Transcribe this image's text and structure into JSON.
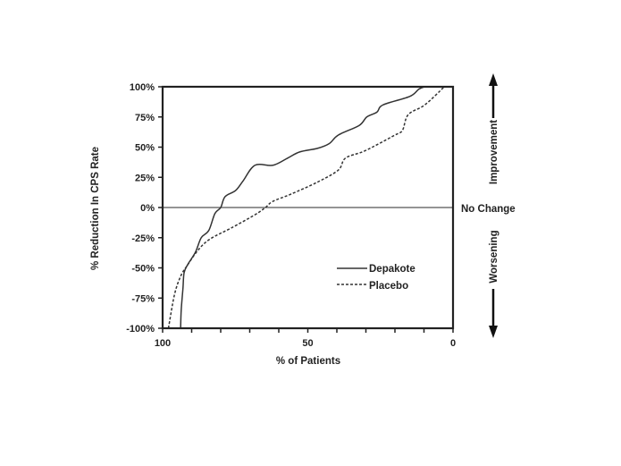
{
  "chart_data": {
    "type": "line",
    "title": "",
    "xlabel": "% of Patients",
    "ylabel": "% Reduction In CPS Rate",
    "xlim": [
      100,
      0
    ],
    "ylim": [
      -100,
      100
    ],
    "x_reversed": true,
    "x_ticks": [
      100,
      90,
      80,
      70,
      60,
      50,
      40,
      30,
      20,
      10,
      0
    ],
    "x_tick_labels": [
      {
        "value": 100,
        "label": "100"
      },
      {
        "value": 50,
        "label": "50"
      },
      {
        "value": 0,
        "label": "0"
      }
    ],
    "y_ticks": [
      {
        "value": 100,
        "label": "100%"
      },
      {
        "value": 75,
        "label": "75%"
      },
      {
        "value": 50,
        "label": "50%"
      },
      {
        "value": 25,
        "label": "25%"
      },
      {
        "value": 0,
        "label": "0%"
      },
      {
        "value": -25,
        "label": "-25%"
      },
      {
        "value": -50,
        "label": "-50%"
      },
      {
        "value": -75,
        "label": "-75%"
      },
      {
        "value": -100,
        "label": "-100%"
      }
    ],
    "grid": false,
    "reference_line": {
      "y": 0,
      "label": "No Change"
    },
    "right_annotations": {
      "up": "Improvement",
      "down": "Worsening"
    },
    "legend_position": "lower-right",
    "series": [
      {
        "name": "Depakote",
        "style": "solid",
        "color": "#333333",
        "points": [
          [
            93.8,
            -100
          ],
          [
            93.6,
            -85
          ],
          [
            93,
            -67
          ],
          [
            92.6,
            -54
          ],
          [
            91.3,
            -47
          ],
          [
            88.7,
            -37
          ],
          [
            86.7,
            -25
          ],
          [
            84.1,
            -19
          ],
          [
            82,
            -5
          ],
          [
            80,
            0
          ],
          [
            78.5,
            9
          ],
          [
            74.9,
            14
          ],
          [
            72.3,
            22
          ],
          [
            68.2,
            35
          ],
          [
            62,
            35
          ],
          [
            56.9,
            41
          ],
          [
            52.8,
            46
          ],
          [
            46.7,
            49
          ],
          [
            42.6,
            53
          ],
          [
            39.5,
            60
          ],
          [
            32.3,
            68
          ],
          [
            29.7,
            75
          ],
          [
            26.2,
            79
          ],
          [
            24.1,
            85
          ],
          [
            14.9,
            92
          ],
          [
            11.8,
            98
          ],
          [
            9.8,
            100
          ]
        ]
      },
      {
        "name": "Placebo",
        "style": "dashed",
        "color": "#333333",
        "points": [
          [
            98,
            -100
          ],
          [
            95.9,
            -72
          ],
          [
            93.8,
            -57
          ],
          [
            91.8,
            -49
          ],
          [
            87.7,
            -35
          ],
          [
            83.6,
            -26
          ],
          [
            76.4,
            -17
          ],
          [
            68.2,
            -6
          ],
          [
            64.6,
            0
          ],
          [
            62.1,
            5
          ],
          [
            55.9,
            11
          ],
          [
            46.7,
            21
          ],
          [
            39.5,
            31
          ],
          [
            37,
            41
          ],
          [
            30.3,
            47
          ],
          [
            20,
            60
          ],
          [
            17.4,
            64
          ],
          [
            15.4,
            77
          ],
          [
            9.7,
            85
          ],
          [
            3,
            100
          ]
        ]
      }
    ]
  }
}
